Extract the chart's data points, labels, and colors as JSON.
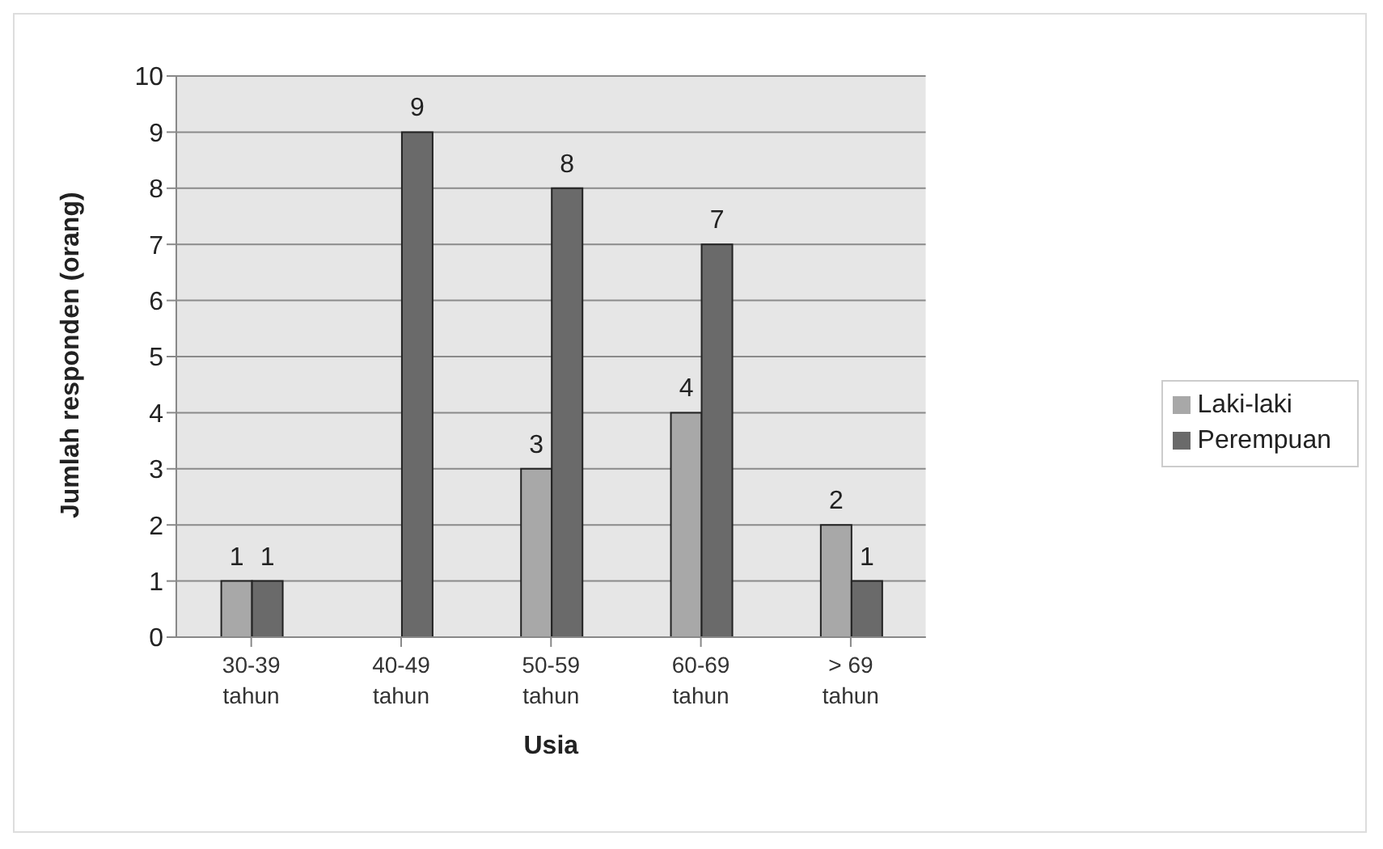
{
  "chart_data": {
    "type": "bar",
    "xlabel": "Usia",
    "ylabel": "Jumlah responden (orang)",
    "categories": [
      "30-39 tahun",
      "40-49 tahun",
      "50-59 tahun",
      "60-69 tahun",
      "> 69 tahun"
    ],
    "series": [
      {
        "name": "Laki-laki",
        "color": "#a8a8a8",
        "values": [
          1,
          0,
          3,
          4,
          2
        ],
        "value_labels": [
          "1",
          null,
          "3",
          "4",
          "2"
        ]
      },
      {
        "name": "Perempuan",
        "color": "#6a6a6a",
        "values": [
          1,
          9,
          8,
          7,
          1
        ],
        "value_labels": [
          "1",
          "9",
          "8",
          "7",
          "1"
        ]
      }
    ],
    "ylim": [
      0,
      10
    ],
    "yticks": [
      0,
      1,
      2,
      3,
      4,
      5,
      6,
      7,
      8,
      9,
      10
    ],
    "grid": "y",
    "legend": "right"
  }
}
